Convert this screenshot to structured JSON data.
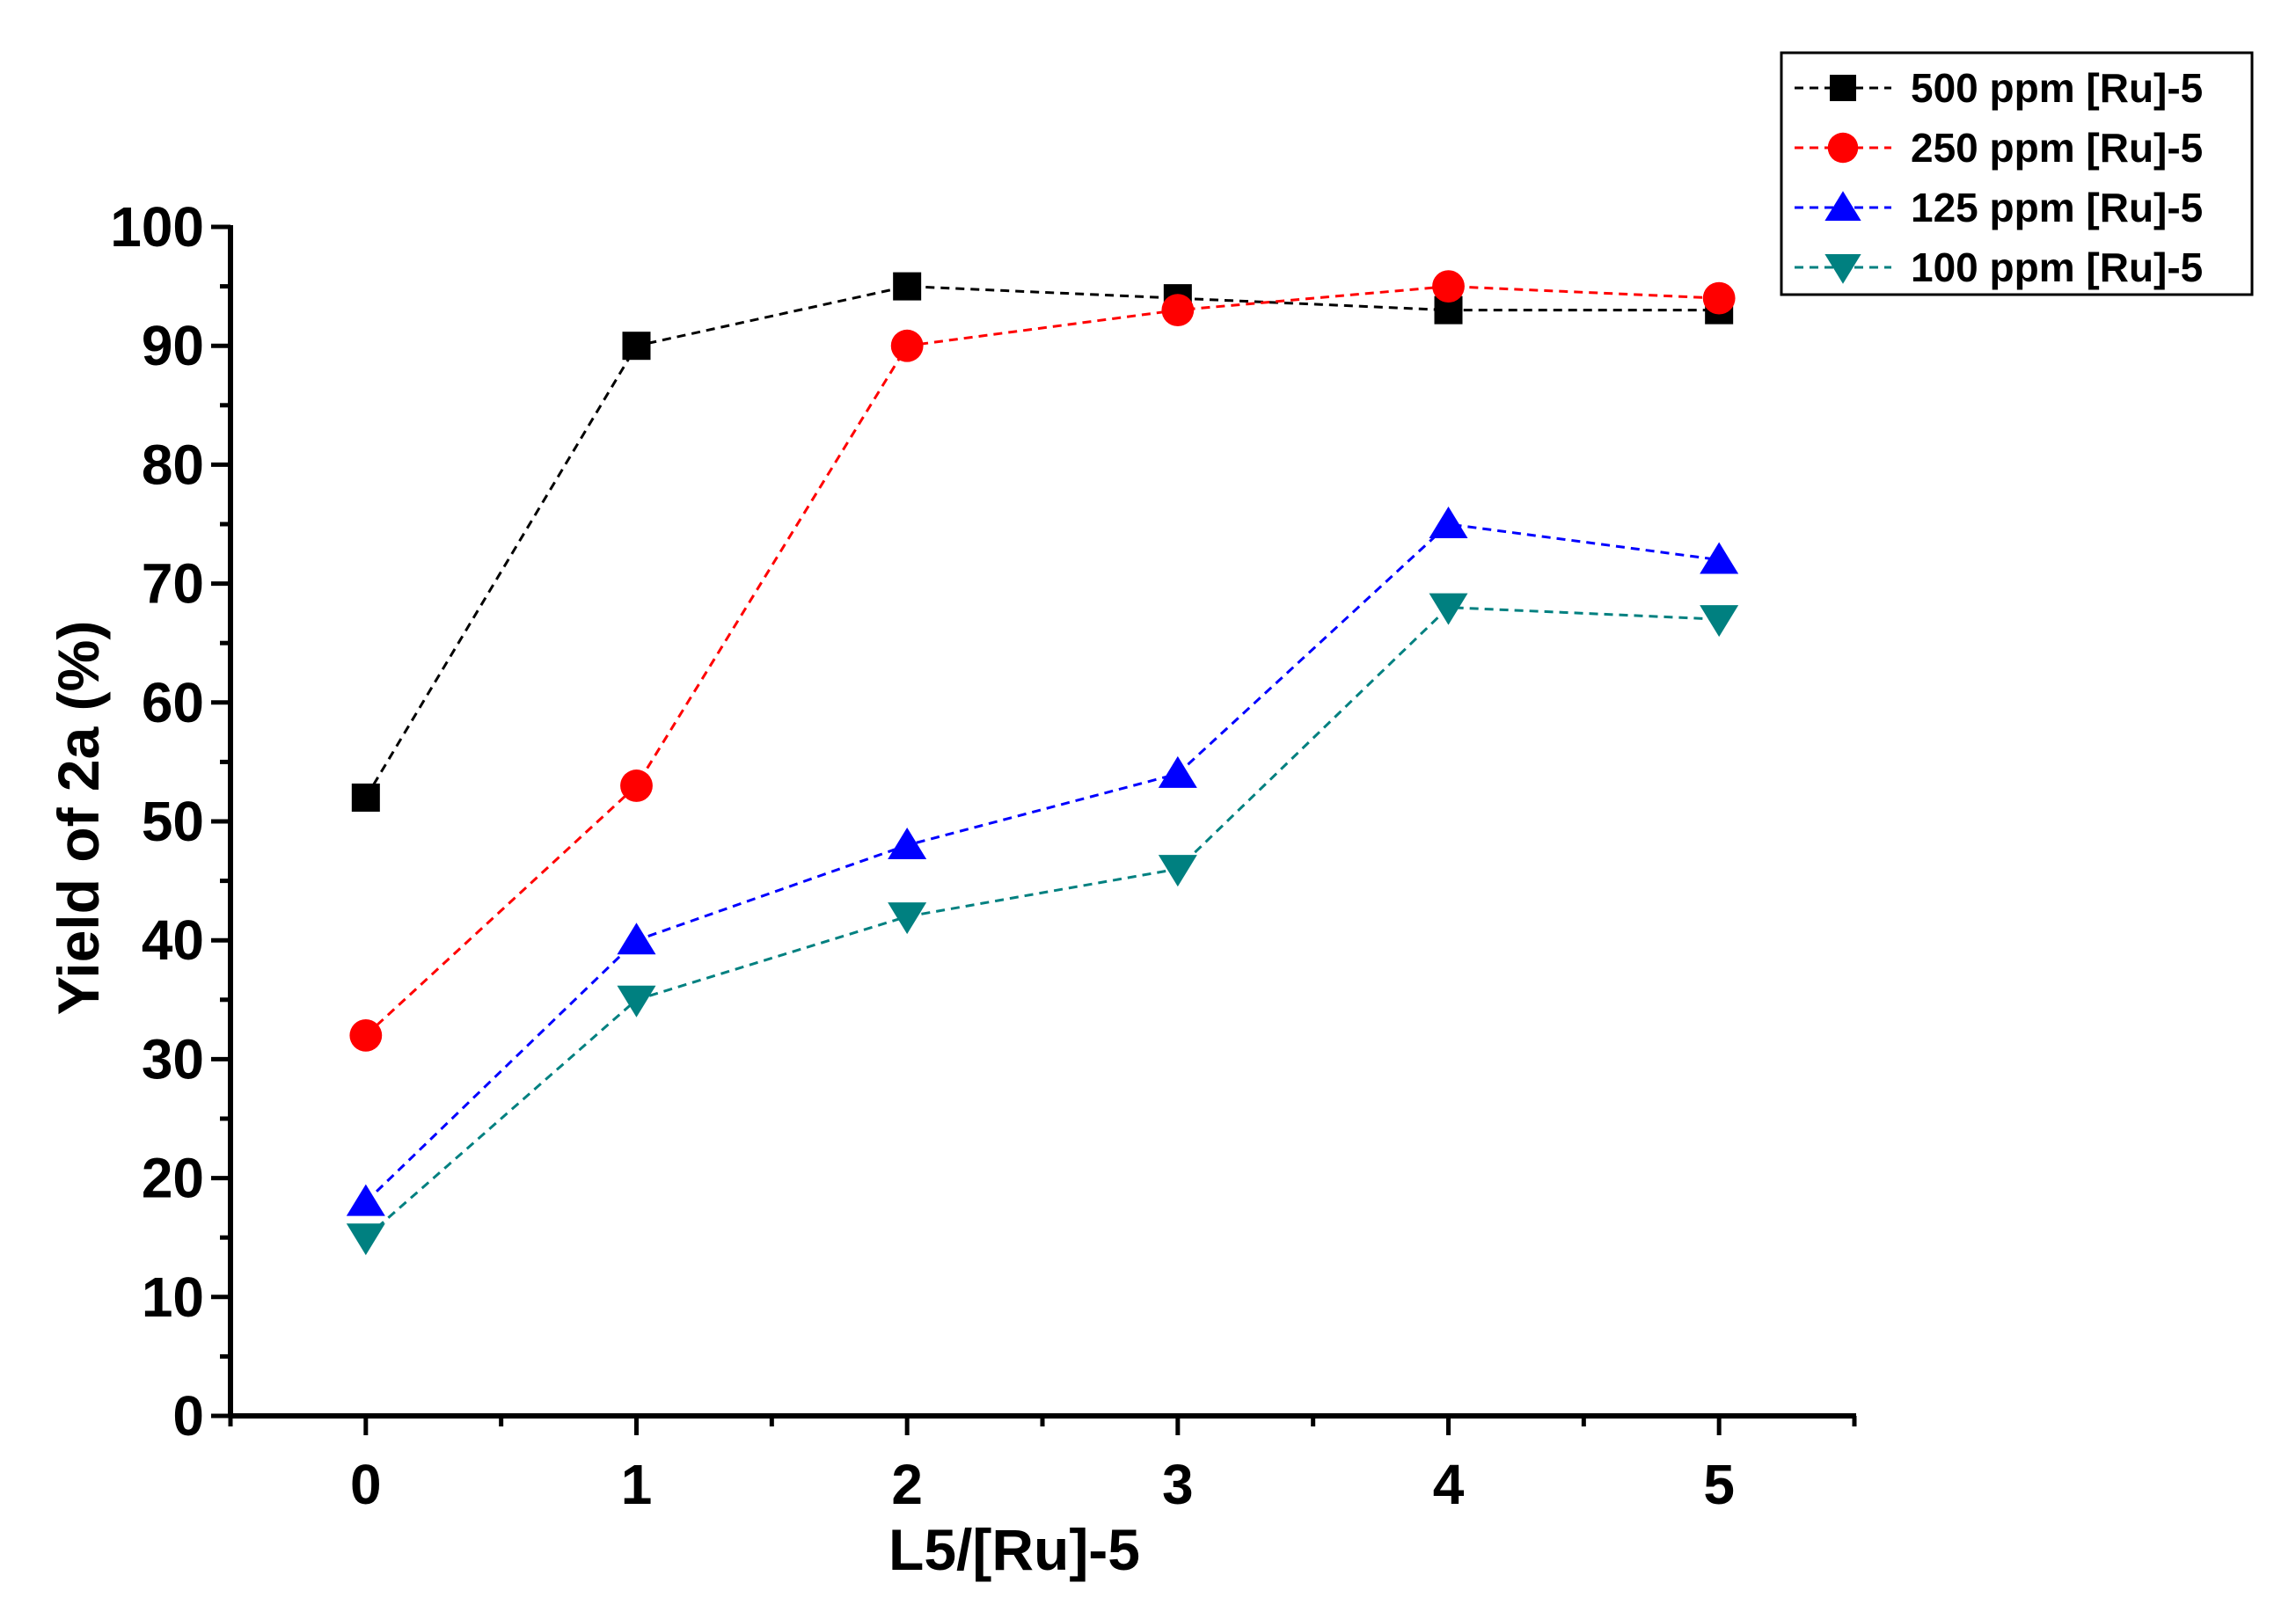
{
  "chart_data": {
    "type": "line",
    "title": "",
    "xlabel": "L5/[Ru]-5",
    "ylabel": "Yield of 2a (%)",
    "x": [
      0,
      1,
      2,
      3,
      4,
      5
    ],
    "xlim": [
      -0.5,
      5.5
    ],
    "ylim": [
      0,
      100
    ],
    "x_ticks": [
      "0",
      "1",
      "2",
      "3",
      "4",
      "5"
    ],
    "y_ticks": [
      "0",
      "10",
      "20",
      "30",
      "40",
      "50",
      "60",
      "70",
      "80",
      "90",
      "100"
    ],
    "grid": false,
    "legend_position": "top-right",
    "series": [
      {
        "name": "500 ppm [Ru]-5",
        "marker": "square",
        "color": "#000000",
        "values": [
          52,
          90,
          95,
          94,
          93,
          93
        ]
      },
      {
        "name": "250 ppm [Ru]-5",
        "marker": "circle",
        "color": "#ff0000",
        "values": [
          32,
          53,
          90,
          93,
          95,
          94
        ]
      },
      {
        "name": "125 ppm [Ru]-5",
        "marker": "triangle-up",
        "color": "#0000ff",
        "values": [
          18,
          40,
          48,
          54,
          75,
          72
        ]
      },
      {
        "name": "100 ppm [Ru]-5",
        "marker": "triangle-down",
        "color": "#008080",
        "values": [
          15,
          35,
          42,
          46,
          68,
          67
        ]
      }
    ]
  }
}
